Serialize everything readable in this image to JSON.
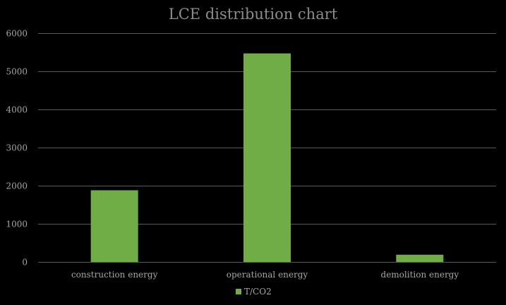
{
  "chart_data": {
    "type": "bar",
    "title": "LCE distribution chart",
    "categories": [
      "construction energy",
      "operational energy",
      "demolition energy"
    ],
    "series": [
      {
        "name": "T/CO2",
        "values": [
          1880,
          5470,
          190
        ],
        "color": "#70ad47"
      }
    ],
    "ylim": [
      0,
      6000
    ],
    "yticks": [
      0,
      1000,
      2000,
      3000,
      4000,
      5000,
      6000
    ],
    "grid": true,
    "legend_position": "bottom",
    "colors": {
      "background": "#000000",
      "grid": "#595959",
      "text": "#a6a6a6",
      "title": "#8c8c8c"
    }
  }
}
